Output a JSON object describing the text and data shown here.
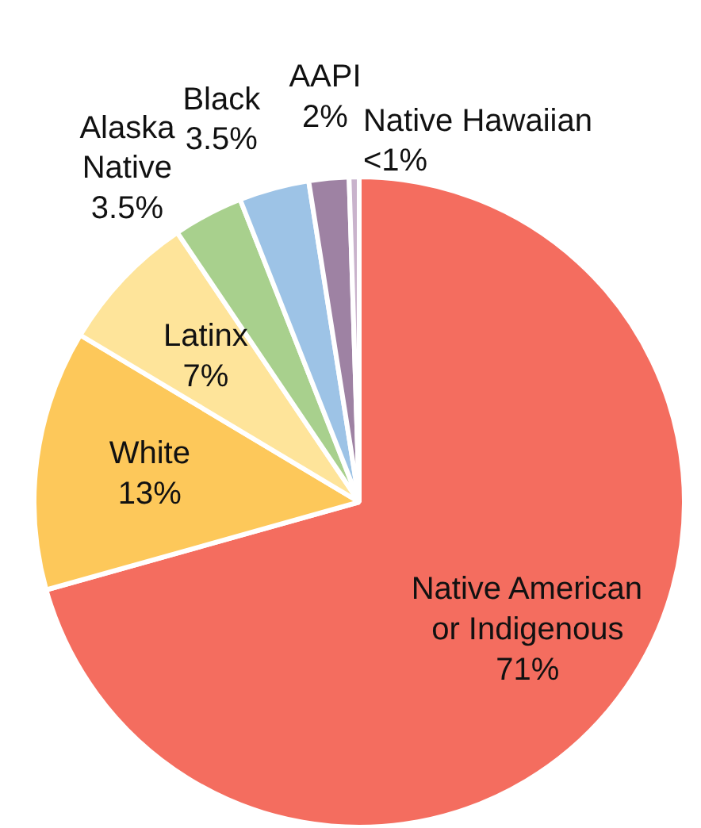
{
  "chart_data": {
    "type": "pie",
    "categories": [
      "Native American or Indigenous",
      "White",
      "Latinx",
      "Alaska\nNative",
      "Black",
      "AAPI",
      "Native Hawaiian"
    ],
    "values": [
      71,
      13,
      7,
      3.5,
      3.5,
      2,
      0.5
    ],
    "value_labels": [
      "71%",
      "13%",
      "7%",
      "3.5%",
      "3.5%",
      "2%",
      "<1%"
    ],
    "colors": [
      "#f46d5f",
      "#fdc85a",
      "#fee49a",
      "#a8d08d",
      "#9dc3e6",
      "#9e82a3",
      "#c9b3cc"
    ],
    "legend": false
  }
}
